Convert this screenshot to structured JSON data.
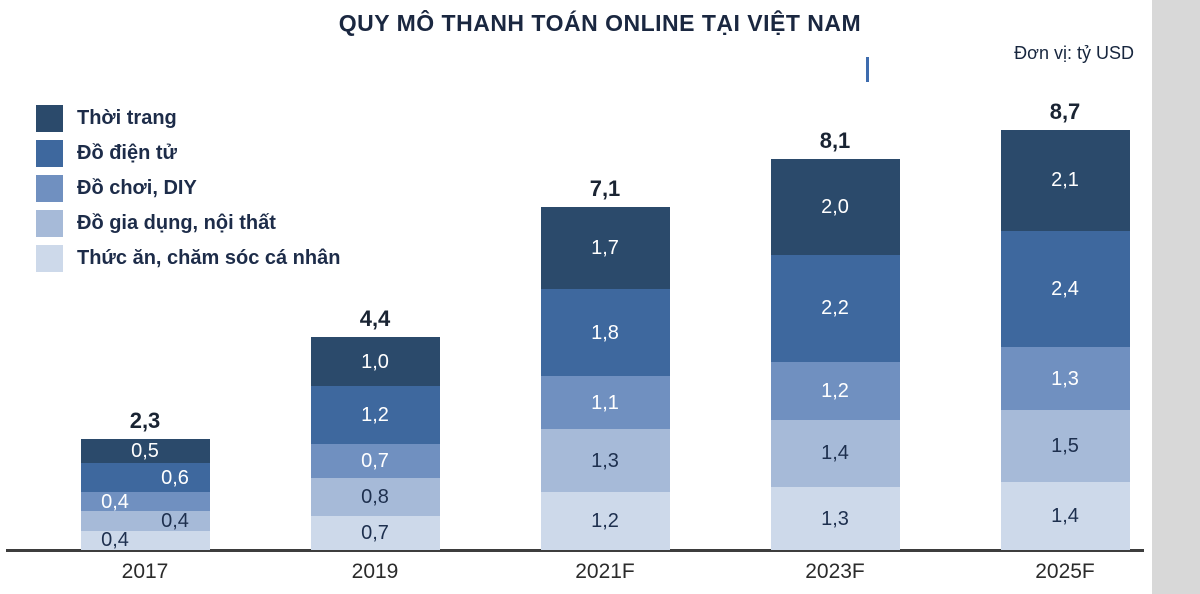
{
  "title": "QUY MÔ THANH TOÁN ONLINE TẠI VIỆT NAM",
  "unit_label": "Đơn vị: tỷ USD",
  "chart_data": {
    "type": "bar",
    "stacked": true,
    "title": "QUY MÔ THANH TOÁN ONLINE TẠI VIỆT NAM",
    "unit": "tỷ USD",
    "decimal_separator": ",",
    "categories": [
      "2017",
      "2019",
      "2021F",
      "2023F",
      "2025F"
    ],
    "totals": [
      2.3,
      4.4,
      7.1,
      8.1,
      8.7
    ],
    "series": [
      {
        "name": "Thức ăn, chăm sóc cá nhân",
        "color": "#cdd9ea",
        "label_color": "#1d2f4e",
        "values": [
          0.4,
          0.7,
          1.2,
          1.3,
          1.4
        ]
      },
      {
        "name": "Đồ gia dụng, nội thất",
        "color": "#a6bad8",
        "label_color": "#1d2f4e",
        "values": [
          0.4,
          0.8,
          1.3,
          1.4,
          1.5
        ]
      },
      {
        "name": "Đồ chơi, DIY",
        "color": "#7090c0",
        "label_color": "#ffffff",
        "values": [
          0.4,
          0.7,
          1.1,
          1.2,
          1.3
        ]
      },
      {
        "name": "Đồ điện tử",
        "color": "#3e689e",
        "label_color": "#ffffff",
        "values": [
          0.6,
          1.2,
          1.8,
          2.2,
          2.4
        ]
      },
      {
        "name": "Thời trang",
        "color": "#2b4a6b",
        "label_color": "#ffffff",
        "values": [
          0.5,
          1.0,
          1.7,
          2.0,
          2.1
        ]
      }
    ],
    "legend_position": "top-left",
    "legend_order": [
      "Thời trang",
      "Đồ điện tử",
      "Đồ chơi, DIY",
      "Đồ gia dụng, nội thất",
      "Thức ăn, chăm sóc cá nhân"
    ],
    "xlabel": "",
    "ylabel": "",
    "ylim": [
      0,
      9
    ],
    "grid": false,
    "axis_color": "#3d3d3d"
  }
}
